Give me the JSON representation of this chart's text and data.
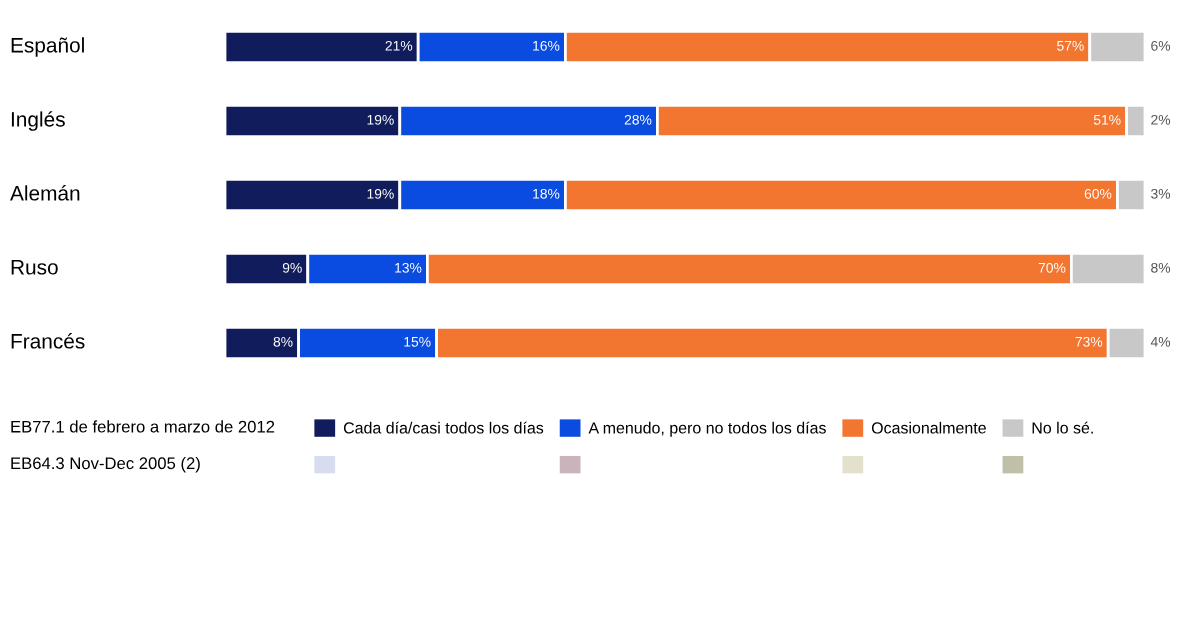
{
  "chart_data": {
    "type": "bar",
    "orientation": "horizontal",
    "stacked": true,
    "legend": "bottom",
    "categories": [
      "Español",
      "Inglés",
      "Alemán",
      "Ruso",
      "Francés"
    ],
    "series": [
      {
        "name": "Cada día/casi todos los días",
        "color": "#111c5c",
        "values": [
          21,
          19,
          19,
          9,
          8
        ],
        "value_labels": [
          "21%",
          "19%",
          "19%",
          "9%",
          "8%"
        ]
      },
      {
        "name": "A menudo, pero no todos los días",
        "color": "#0a4be0",
        "values": [
          16,
          28,
          18,
          13,
          15
        ],
        "value_labels": [
          "16%",
          "28%",
          "18%",
          "13%",
          "15%"
        ]
      },
      {
        "name": "Ocasionalmente",
        "color": "#f27530",
        "values": [
          57,
          51,
          60,
          70,
          73
        ],
        "value_labels": [
          "57%",
          "51%",
          "60%",
          "70%",
          "73%"
        ]
      },
      {
        "name": "No lo sé.",
        "color": "#c8c8c8",
        "values": [
          6,
          2,
          3,
          8,
          4
        ],
        "value_labels": [
          "6%",
          "2%",
          "3%",
          "8%",
          "4%"
        ]
      },
      {
        "color": "#d8dcf0",
        "values": [
          null,
          null,
          null,
          null,
          null
        ]
      },
      {
        "color": "#cbb3bb",
        "values": [
          null,
          null,
          null,
          null,
          null
        ]
      },
      {
        "color": "#e3e0cc",
        "values": [
          null,
          null,
          null,
          null,
          null
        ]
      },
      {
        "color": "#c0bfa8",
        "values": [
          null,
          null,
          null,
          null,
          null
        ]
      }
    ],
    "annotations": [
      "EB77.1 de febrero a marzo de 2012",
      "EB64.3 Nov-Dec 2005 (2)"
    ]
  }
}
